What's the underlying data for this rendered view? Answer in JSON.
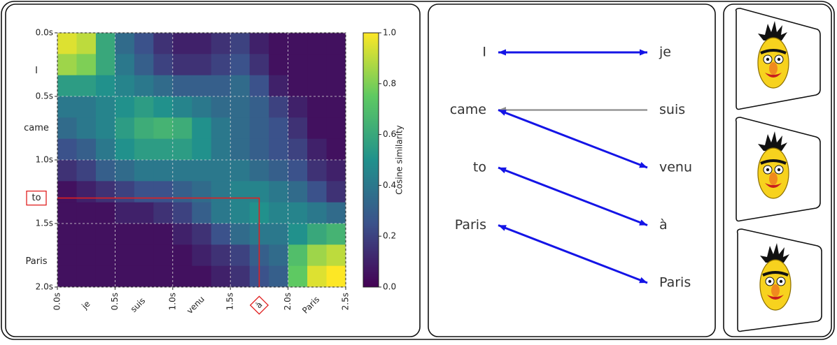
{
  "chart_data": {
    "type": "heatmap",
    "xlim": [
      0,
      2.5
    ],
    "ylim": [
      0,
      2.0
    ],
    "xticks": [
      {
        "value": 0,
        "label": "0.0s"
      },
      {
        "value": 0.5,
        "label": "0.5s"
      },
      {
        "value": 1.0,
        "label": "1.0s"
      },
      {
        "value": 1.5,
        "label": "1.5s"
      },
      {
        "value": 2.0,
        "label": "2.0s"
      },
      {
        "value": 2.5,
        "label": "2.5s"
      }
    ],
    "yticks": [
      {
        "value": 0,
        "label": "0.0s"
      },
      {
        "value": 0.5,
        "label": "0.5s"
      },
      {
        "value": 1.0,
        "label": "1.0s"
      },
      {
        "value": 1.5,
        "label": "1.5s"
      },
      {
        "value": 2.0,
        "label": "2.0s"
      }
    ],
    "x_words": [
      {
        "value": 0.25,
        "label": "je"
      },
      {
        "value": 0.7,
        "label": "suis"
      },
      {
        "value": 1.2,
        "label": "venu"
      },
      {
        "value": 1.75,
        "label": "à"
      },
      {
        "value": 2.2,
        "label": "Paris"
      }
    ],
    "y_words": [
      {
        "value": 0.3,
        "label": "I"
      },
      {
        "value": 0.75,
        "label": "came"
      },
      {
        "value": 1.3,
        "label": "to"
      },
      {
        "value": 1.8,
        "label": "Paris"
      }
    ],
    "highlight": {
      "x_word": 3,
      "y_word": 2,
      "color": "#e02020"
    },
    "grid": true,
    "colorbar": {
      "label": "Cosine similarity",
      "lim": [
        0,
        1.0
      ],
      "ticks": [
        {
          "value": 0,
          "label": "0.0"
        },
        {
          "value": 0.2,
          "label": "0.2"
        },
        {
          "value": 0.4,
          "label": "0.4"
        },
        {
          "value": 0.6,
          "label": "0.6"
        },
        {
          "value": 0.8,
          "label": "0.8"
        },
        {
          "value": 1.0,
          "label": "1.0"
        }
      ]
    },
    "z": [
      [
        0.95,
        0.9,
        0.6,
        0.35,
        0.25,
        0.15,
        0.1,
        0.1,
        0.15,
        0.2,
        0.1,
        0.05,
        0.05,
        0.05,
        0.05
      ],
      [
        0.85,
        0.8,
        0.6,
        0.4,
        0.3,
        0.2,
        0.15,
        0.15,
        0.2,
        0.25,
        0.15,
        0.05,
        0.05,
        0.05,
        0.05
      ],
      [
        0.55,
        0.55,
        0.5,
        0.45,
        0.4,
        0.35,
        0.3,
        0.3,
        0.3,
        0.35,
        0.25,
        0.1,
        0.05,
        0.05,
        0.05
      ],
      [
        0.4,
        0.4,
        0.45,
        0.5,
        0.55,
        0.5,
        0.45,
        0.4,
        0.35,
        0.35,
        0.3,
        0.2,
        0.1,
        0.05,
        0.05
      ],
      [
        0.35,
        0.4,
        0.45,
        0.55,
        0.62,
        0.65,
        0.62,
        0.5,
        0.4,
        0.35,
        0.3,
        0.25,
        0.15,
        0.05,
        0.05
      ],
      [
        0.25,
        0.3,
        0.4,
        0.5,
        0.55,
        0.55,
        0.55,
        0.5,
        0.4,
        0.35,
        0.3,
        0.25,
        0.2,
        0.1,
        0.05
      ],
      [
        0.15,
        0.2,
        0.3,
        0.35,
        0.4,
        0.4,
        0.4,
        0.4,
        0.4,
        0.4,
        0.35,
        0.3,
        0.25,
        0.15,
        0.1
      ],
      [
        0.05,
        0.1,
        0.15,
        0.2,
        0.25,
        0.25,
        0.3,
        0.35,
        0.4,
        0.45,
        0.45,
        0.4,
        0.35,
        0.25,
        0.15
      ],
      [
        0.05,
        0.05,
        0.05,
        0.1,
        0.1,
        0.15,
        0.2,
        0.3,
        0.4,
        0.45,
        0.5,
        0.45,
        0.45,
        0.4,
        0.35
      ],
      [
        0.05,
        0.05,
        0.05,
        0.05,
        0.05,
        0.05,
        0.1,
        0.15,
        0.25,
        0.35,
        0.4,
        0.4,
        0.5,
        0.6,
        0.65
      ],
      [
        0.05,
        0.05,
        0.05,
        0.05,
        0.05,
        0.05,
        0.05,
        0.1,
        0.15,
        0.2,
        0.3,
        0.35,
        0.7,
        0.85,
        0.9
      ],
      [
        0.05,
        0.05,
        0.05,
        0.05,
        0.05,
        0.05,
        0.05,
        0.05,
        0.1,
        0.15,
        0.25,
        0.3,
        0.75,
        0.95,
        1.0
      ]
    ]
  },
  "alignment": {
    "source": [
      "I",
      "came",
      "to",
      "Paris"
    ],
    "target": [
      "je",
      "suis",
      "venu",
      "à",
      "Paris"
    ],
    "links": [
      {
        "source": 0,
        "target": 0,
        "color": "#1414e6",
        "heads": "both"
      },
      {
        "source": 1,
        "target": 1,
        "color": "#8c8c8c",
        "heads": "source"
      },
      {
        "source": 1,
        "target": 2,
        "color": "#1414e6",
        "heads": "both"
      },
      {
        "source": 2,
        "target": 3,
        "color": "#1414e6",
        "heads": "both"
      },
      {
        "source": 3,
        "target": 4,
        "color": "#1414e6",
        "heads": "both"
      }
    ]
  }
}
